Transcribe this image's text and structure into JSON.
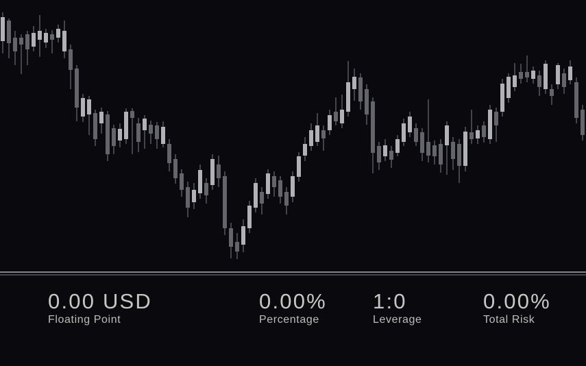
{
  "panel": {
    "name": "risk-monitor-panel",
    "background": "#0a0a0e",
    "divider_bright_color": "#84848c",
    "divider_dim_color": "#45454d",
    "text_color": "#c9c7c3"
  },
  "stats": [
    {
      "id": "floating-point",
      "value": "0.00 USD",
      "label": "Floating Point"
    },
    {
      "id": "percentage",
      "value": "0.00%",
      "label": "Percentage"
    },
    {
      "id": "leverage",
      "value": "1:0",
      "label": "Leverage"
    },
    {
      "id": "total-risk",
      "value": "0.00%",
      "label": "Total Risk"
    }
  ],
  "chart_data": {
    "type": "candlestick",
    "title": "",
    "xlabel": "",
    "ylabel": "",
    "grid": false,
    "legend": false,
    "axes_visible": false,
    "note": "Unlabeled dark candlestick chart; prices on relative 0-100 scale estimated from pixels",
    "format": "[open, high, low, close]",
    "ylim": [
      0,
      100
    ],
    "bars": 95,
    "layout": {
      "x_start": 4,
      "x_step": 9,
      "body_width": 6,
      "y_base": 400,
      "y_scale": 4
    },
    "colors": {
      "background": "#0a0a0e",
      "bull_body": "#b1b2b6",
      "bear_body": "#64656b",
      "wick": "#7e7f85"
    },
    "candles": [
      [
        85,
        95.5,
        80.5,
        93.8
      ],
      [
        92.5,
        93.3,
        78.8,
        84.3
      ],
      [
        86.3,
        88.8,
        76.3,
        81.3
      ],
      [
        86.3,
        87.5,
        73,
        83.8
      ],
      [
        87.5,
        88.8,
        76.3,
        82
      ],
      [
        83,
        90.5,
        81.3,
        88
      ],
      [
        85.5,
        94.5,
        79.3,
        88.8
      ],
      [
        84.5,
        89.5,
        82.5,
        88
      ],
      [
        87.5,
        89,
        80.5,
        85.5
      ],
      [
        86.3,
        91,
        84.5,
        89.5
      ],
      [
        81.3,
        92.5,
        78.8,
        88.8
      ],
      [
        82,
        83.8,
        67.5,
        74.5
      ],
      [
        75,
        76.3,
        55.8,
        60.8
      ],
      [
        57.5,
        65.8,
        55.5,
        64.3
      ],
      [
        58.3,
        65,
        50.8,
        63.8
      ],
      [
        58.8,
        60,
        46.8,
        49.3
      ],
      [
        55,
        60.8,
        51.3,
        59.3
      ],
      [
        58.3,
        59.5,
        41.3,
        43.8
      ],
      [
        53.3,
        54.5,
        43.8,
        46.8
      ],
      [
        48.8,
        55,
        46.3,
        53
      ],
      [
        49.3,
        60.5,
        47.5,
        59.3
      ],
      [
        59.5,
        60.5,
        43.8,
        57
      ],
      [
        55,
        57,
        44.5,
        48.3
      ],
      [
        52.5,
        58,
        45.8,
        56.8
      ],
      [
        54.5,
        56,
        47.5,
        51.3
      ],
      [
        54.3,
        55.5,
        45.8,
        49.3
      ],
      [
        47.5,
        55.8,
        46.3,
        53.8
      ],
      [
        47.5,
        49.3,
        37.5,
        40.5
      ],
      [
        42,
        43.8,
        33,
        35
      ],
      [
        36.8,
        38.3,
        28.3,
        30.8
      ],
      [
        31.8,
        33.8,
        20.8,
        24.3
      ],
      [
        26.3,
        33.3,
        23.8,
        30.8
      ],
      [
        29.5,
        40,
        27.5,
        38
      ],
      [
        33.3,
        35,
        25.8,
        28.8
      ],
      [
        32.5,
        43.8,
        30.8,
        42
      ],
      [
        40,
        43.3,
        31.8,
        35
      ],
      [
        35.8,
        37.5,
        14.3,
        16.8
      ],
      [
        16.8,
        18.8,
        5.8,
        10
      ],
      [
        11.8,
        15,
        5.5,
        8.3
      ],
      [
        10.8,
        20,
        8,
        17.5
      ],
      [
        16.8,
        26.8,
        15,
        25
      ],
      [
        24.3,
        35,
        22.5,
        33.3
      ],
      [
        30,
        31.8,
        21.8,
        25.8
      ],
      [
        29.3,
        38.3,
        27.5,
        36.8
      ],
      [
        35.8,
        37.5,
        28.3,
        31.8
      ],
      [
        34.3,
        35.8,
        25.8,
        28.3
      ],
      [
        30,
        31.8,
        21.8,
        25
      ],
      [
        28.3,
        37.5,
        26.3,
        35.8
      ],
      [
        35.5,
        44.5,
        33.8,
        43
      ],
      [
        43.3,
        50,
        41.3,
        47.5
      ],
      [
        46.8,
        55,
        45,
        52.5
      ],
      [
        48.3,
        58.8,
        46.8,
        54.3
      ],
      [
        52.5,
        54.3,
        45,
        49.5
      ],
      [
        52.5,
        60,
        50.8,
        58
      ],
      [
        59.3,
        64.5,
        54.3,
        55.8
      ],
      [
        55,
        65.5,
        53.3,
        60
      ],
      [
        59.3,
        77.8,
        57.5,
        70
      ],
      [
        67.5,
        75,
        63.3,
        72
      ],
      [
        71.8,
        73.3,
        60,
        63
      ],
      [
        67.5,
        69.3,
        54.5,
        58.3
      ],
      [
        63,
        64.5,
        36.8,
        44.3
      ],
      [
        46.8,
        48.3,
        38,
        40.8
      ],
      [
        43,
        49.3,
        41.3,
        47
      ],
      [
        45,
        46.8,
        38.8,
        41.8
      ],
      [
        44.3,
        50.8,
        43,
        49.3
      ],
      [
        48.3,
        56.8,
        46.8,
        55
      ],
      [
        51.8,
        59.3,
        50,
        57.5
      ],
      [
        53.3,
        55,
        46.8,
        48.3
      ],
      [
        51.8,
        53.3,
        41.3,
        44.3
      ],
      [
        48.3,
        63.8,
        40.8,
        43.3
      ],
      [
        47,
        48.8,
        40,
        43
      ],
      [
        47.5,
        49.3,
        37,
        40
      ],
      [
        47,
        55.8,
        36.3,
        54.3
      ],
      [
        48.3,
        50,
        38,
        42
      ],
      [
        47.5,
        49.3,
        33.3,
        39.5
      ],
      [
        39.5,
        53.8,
        37.5,
        52
      ],
      [
        51.8,
        60,
        47.5,
        49.3
      ],
      [
        49.5,
        54.3,
        47.5,
        52.5
      ],
      [
        54.3,
        55.8,
        48,
        50
      ],
      [
        49.3,
        61.8,
        47.5,
        60
      ],
      [
        59.3,
        60.8,
        48.3,
        54.3
      ],
      [
        59.3,
        71.3,
        57.5,
        69.5
      ],
      [
        64.3,
        73.3,
        62.5,
        72
      ],
      [
        68.3,
        77,
        66.8,
        72.5
      ],
      [
        73.8,
        76.8,
        69.5,
        71.3
      ],
      [
        73.8,
        79.8,
        70,
        71.8
      ],
      [
        71.3,
        75.8,
        69.5,
        74.3
      ],
      [
        72.5,
        74.3,
        65,
        68.3
      ],
      [
        67.5,
        78,
        65.8,
        76.8
      ],
      [
        67.5,
        69.3,
        61.8,
        65
      ],
      [
        69.3,
        77,
        67.5,
        76.3
      ],
      [
        73.3,
        75,
        65.8,
        68.3
      ],
      [
        70.8,
        78,
        69.3,
        75.8
      ],
      [
        70,
        71.8,
        55,
        57
      ],
      [
        60,
        61.8,
        48.8,
        50.8
      ]
    ]
  }
}
